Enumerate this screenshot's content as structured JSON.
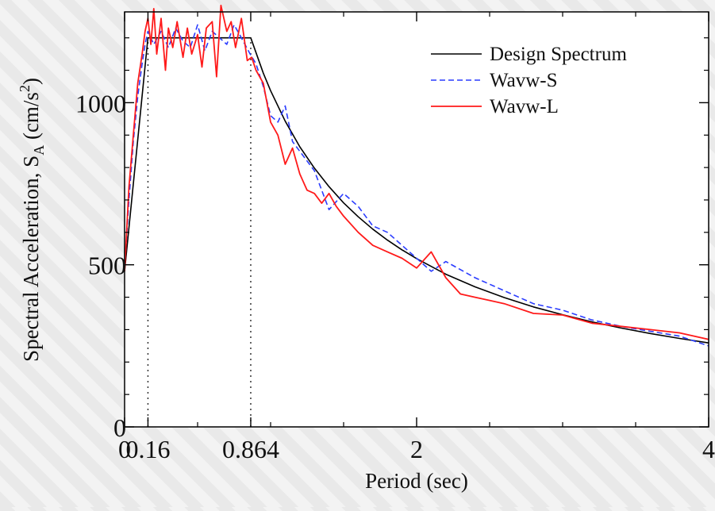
{
  "colors": {
    "design": "#000000",
    "wave_s": "#2a3cff",
    "wave_l": "#ff1a1a",
    "plot_bg": "#ffffff"
  },
  "chart_data": {
    "type": "line",
    "xlabel": "Period (sec)",
    "ylabel_main": "Spectral Acceleration, S",
    "ylabel_sub": "A",
    "ylabel_unit_open": " (cm/s",
    "ylabel_unit_exp": "2",
    "ylabel_unit_close": ")",
    "xlim": [
      0,
      4.0
    ],
    "ylim": [
      0,
      1280
    ],
    "xticks": [
      0,
      0.16,
      0.864,
      2,
      4
    ],
    "xtick_labels": [
      "0",
      "0.16",
      "0.864",
      "2",
      "4"
    ],
    "yticks": [
      0,
      500,
      1000
    ],
    "ytick_labels": [
      "0",
      "500",
      "1000"
    ],
    "minor_xticks": [
      0.5,
      1.0,
      1.5,
      2.5,
      3.0,
      3.5
    ],
    "minor_yticks": [
      100,
      200,
      300,
      400,
      600,
      700,
      800,
      900,
      1100,
      1200
    ],
    "vlines": [
      0.16,
      0.864
    ],
    "legend_position": "top-right",
    "series": [
      {
        "name": "Design Spectrum",
        "style": "solid",
        "x": [
          0,
          0.16,
          0.864,
          0.95,
          1.0,
          1.1,
          1.2,
          1.3,
          1.4,
          1.5,
          1.6,
          1.7,
          1.8,
          1.9,
          2.0,
          2.2,
          2.4,
          2.6,
          2.8,
          3.0,
          3.2,
          3.4,
          3.6,
          3.8,
          4.0
        ],
        "y": [
          480,
          1200,
          1200,
          1091,
          1037,
          943,
          864,
          798,
          741,
          691,
          648,
          610,
          576,
          546,
          519,
          471,
          432,
          399,
          370,
          346,
          324,
          305,
          288,
          273,
          259
        ]
      },
      {
        "name": "Wavw-S",
        "style": "dashed",
        "x": [
          0,
          0.03,
          0.06,
          0.09,
          0.12,
          0.14,
          0.16,
          0.2,
          0.25,
          0.3,
          0.35,
          0.4,
          0.45,
          0.5,
          0.55,
          0.6,
          0.65,
          0.7,
          0.75,
          0.8,
          0.86,
          0.9,
          0.95,
          1.0,
          1.05,
          1.1,
          1.15,
          1.2,
          1.3,
          1.4,
          1.5,
          1.6,
          1.7,
          1.8,
          1.9,
          2.0,
          2.1,
          2.2,
          2.4,
          2.6,
          2.8,
          3.0,
          3.2,
          3.4,
          3.6,
          3.8,
          4.0
        ],
        "y": [
          490,
          700,
          880,
          1020,
          1120,
          1180,
          1220,
          1180,
          1220,
          1170,
          1230,
          1190,
          1170,
          1240,
          1160,
          1220,
          1200,
          1180,
          1240,
          1200,
          1150,
          1120,
          1050,
          960,
          940,
          990,
          880,
          850,
          790,
          670,
          720,
          680,
          620,
          600,
          560,
          520,
          480,
          510,
          460,
          420,
          380,
          360,
          330,
          310,
          295,
          280,
          250
        ]
      },
      {
        "name": "Wavw-L",
        "style": "solid",
        "x": [
          0,
          0.03,
          0.06,
          0.09,
          0.12,
          0.14,
          0.16,
          0.18,
          0.2,
          0.22,
          0.25,
          0.28,
          0.3,
          0.33,
          0.36,
          0.4,
          0.43,
          0.46,
          0.5,
          0.53,
          0.56,
          0.6,
          0.63,
          0.66,
          0.7,
          0.73,
          0.76,
          0.8,
          0.84,
          0.87,
          0.9,
          0.95,
          1.0,
          1.05,
          1.1,
          1.15,
          1.2,
          1.25,
          1.3,
          1.35,
          1.4,
          1.45,
          1.5,
          1.6,
          1.7,
          1.8,
          1.9,
          2.0,
          2.1,
          2.2,
          2.3,
          2.4,
          2.5,
          2.6,
          2.8,
          3.0,
          3.2,
          3.4,
          3.6,
          3.8,
          4.0
        ],
        "y": [
          480,
          740,
          900,
          1060,
          1150,
          1220,
          1260,
          1180,
          1290,
          1150,
          1260,
          1100,
          1230,
          1170,
          1250,
          1140,
          1230,
          1150,
          1210,
          1110,
          1230,
          1250,
          1080,
          1300,
          1220,
          1250,
          1170,
          1260,
          1130,
          1140,
          1100,
          1060,
          940,
          900,
          810,
          860,
          780,
          730,
          720,
          690,
          720,
          680,
          650,
          600,
          560,
          540,
          520,
          490,
          540,
          460,
          410,
          400,
          390,
          380,
          350,
          345,
          320,
          310,
          300,
          290,
          270
        ]
      }
    ]
  }
}
